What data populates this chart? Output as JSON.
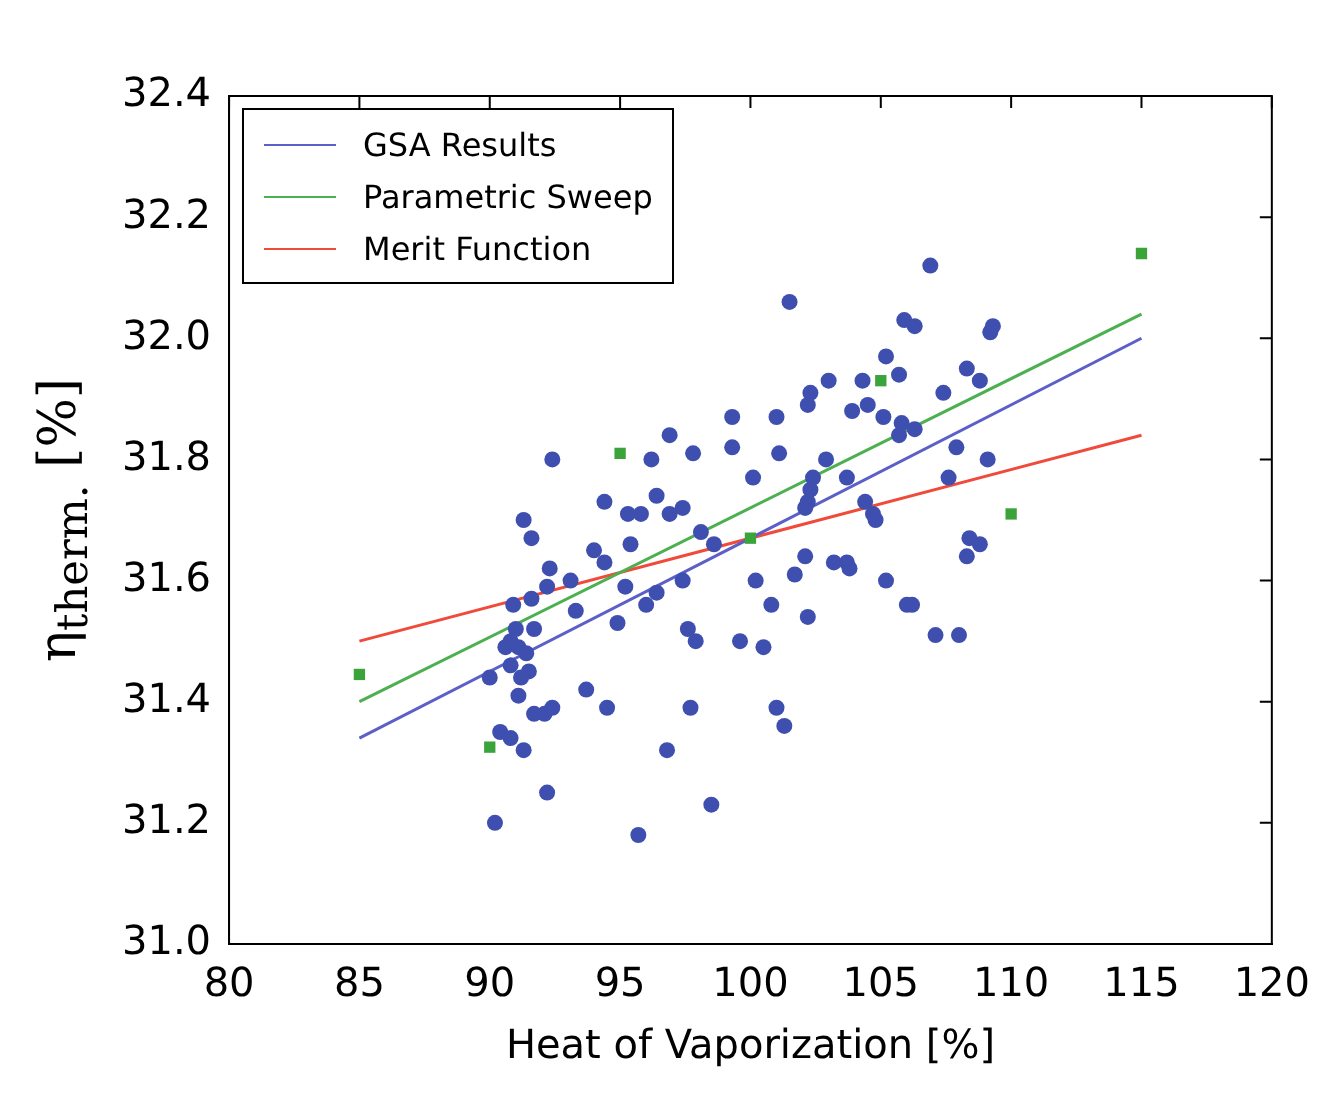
{
  "chart_data": {
    "type": "scatter",
    "xlabel": "Heat of Vaporization [%]",
    "ylabel": "η$_{therm.}$ [%]",
    "xlim": [
      80,
      120
    ],
    "xticks": [
      80,
      85,
      90,
      95,
      100,
      105,
      110,
      115,
      120
    ],
    "ylim": [
      31.0,
      32.4
    ],
    "yticks": [
      {
        "value": 31.0,
        "label": "31.0"
      },
      31.2,
      31.4,
      31.6,
      31.8,
      {
        "value": 32.0,
        "label": "32.0"
      },
      32.2,
      32.4
    ],
    "grid": false,
    "legend": "top left",
    "series": [
      {
        "type": "scatter",
        "color": "#3f4fb0",
        "marker": "circle",
        "x": [
          96.9,
          92.4,
          96.2,
          94.4,
          95.3,
          95.8,
          96.4,
          96.9,
          91.3,
          91.6,
          95.4,
          94.0,
          94.4,
          92.3,
          93.1,
          92.2,
          95.2,
          96.4,
          90.9,
          91.6,
          93.3,
          96.0,
          94.9,
          91.0,
          91.7,
          90.6,
          90.8,
          91.1,
          91.4,
          90.8,
          91.5,
          91.2,
          90.0,
          91.1,
          93.7,
          91.7,
          92.1,
          92.4,
          94.5,
          90.4,
          90.8,
          91.3,
          96.8,
          92.2,
          90.2,
          95.7,
          106.9,
          101.5,
          105.9,
          106.3,
          105.2,
          105.7,
          102.3,
          103.0,
          104.3,
          102.2,
          104.5,
          107.4,
          99.3,
          101.0,
          103.9,
          105.1,
          105.8,
          106.3,
          105.7,
          99.3,
          97.8,
          101.1,
          102.9,
          100.1,
          103.7,
          102.4,
          102.3,
          102.2,
          102.1,
          107.6,
          97.4,
          104.4,
          104.7,
          104.8,
          98.1,
          98.6,
          102.1,
          103.2,
          103.7,
          103.8,
          101.7,
          97.4,
          100.2,
          105.2,
          100.8,
          102.2,
          106.0,
          107.1,
          97.6,
          97.9,
          99.6,
          100.5,
          97.7,
          101.0,
          101.3,
          98.5,
          109.3,
          109.2,
          108.3,
          108.8,
          107.9,
          109.1,
          108.4,
          108.8,
          108.3,
          106.2,
          108.0
        ],
        "values": [
          31.84,
          31.8,
          31.8,
          31.73,
          31.71,
          31.71,
          31.74,
          31.71,
          31.7,
          31.67,
          31.66,
          31.65,
          31.63,
          31.62,
          31.6,
          31.59,
          31.59,
          31.58,
          31.56,
          31.57,
          31.55,
          31.56,
          31.53,
          31.52,
          31.52,
          31.49,
          31.5,
          31.49,
          31.48,
          31.46,
          31.45,
          31.44,
          31.44,
          31.41,
          31.42,
          31.38,
          31.38,
          31.39,
          31.39,
          31.35,
          31.34,
          31.32,
          31.32,
          31.25,
          31.2,
          31.18,
          32.12,
          32.06,
          32.03,
          32.02,
          31.97,
          31.94,
          31.91,
          31.93,
          31.93,
          31.89,
          31.89,
          31.91,
          31.87,
          31.87,
          31.88,
          31.87,
          31.86,
          31.85,
          31.84,
          31.82,
          31.81,
          31.81,
          31.8,
          31.77,
          31.77,
          31.77,
          31.75,
          31.73,
          31.72,
          31.77,
          31.72,
          31.73,
          31.71,
          31.7,
          31.68,
          31.66,
          31.64,
          31.63,
          31.63,
          31.62,
          31.61,
          31.6,
          31.6,
          31.6,
          31.56,
          31.54,
          31.56,
          31.51,
          31.52,
          31.5,
          31.5,
          31.49,
          31.39,
          31.39,
          31.36,
          31.23,
          32.02,
          32.01,
          31.95,
          31.93,
          31.82,
          31.8,
          31.67,
          31.66,
          31.64,
          31.56,
          31.51
        ]
      },
      {
        "type": "scatter",
        "color": "#3aa33a",
        "marker": "square",
        "x": [
          85,
          90,
          95,
          100,
          105,
          110,
          115
        ],
        "values": [
          31.445,
          31.325,
          31.81,
          31.67,
          31.93,
          31.71,
          32.14
        ]
      },
      {
        "type": "line",
        "name": "GSA Results",
        "color": "#5b5fc7",
        "marker": "none",
        "x": [
          85,
          115
        ],
        "values": [
          31.34,
          32.0
        ]
      },
      {
        "type": "line",
        "name": "Parametric Sweep",
        "color": "#4caf50",
        "marker": "none",
        "x": [
          85,
          115
        ],
        "values": [
          31.4,
          32.04
        ]
      },
      {
        "type": "line",
        "name": "Merit Function",
        "color": "#f04a3a",
        "marker": "none",
        "x": [
          85,
          115
        ],
        "values": [
          31.5,
          31.84
        ]
      }
    ]
  }
}
